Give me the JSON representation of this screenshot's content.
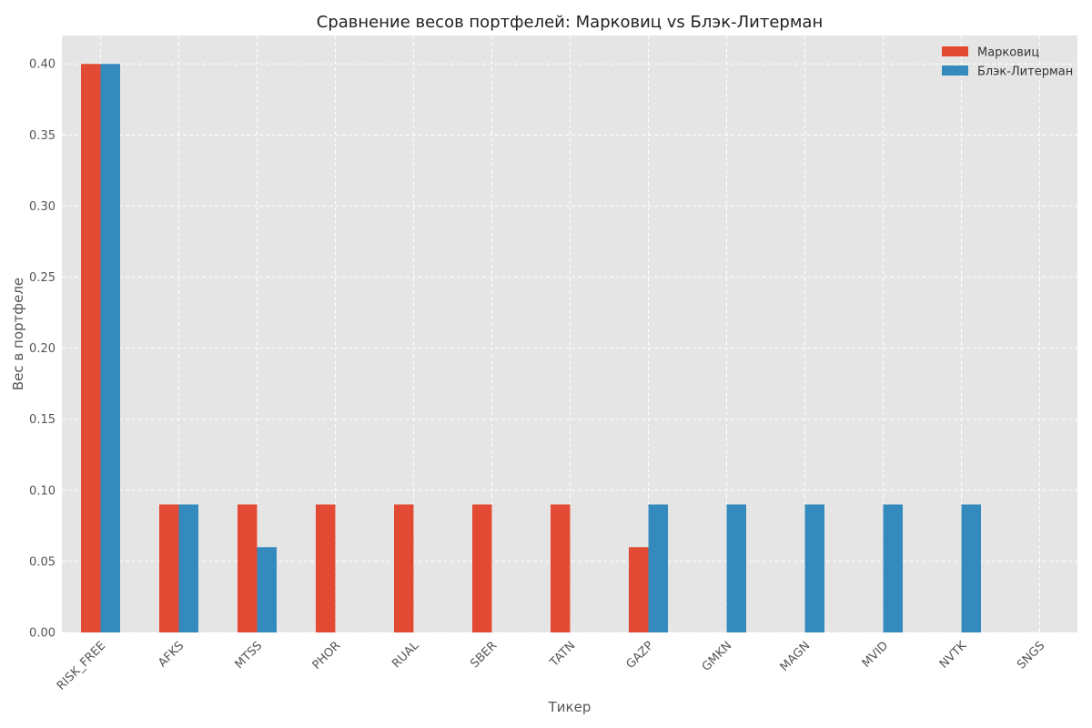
{
  "chart_data": {
    "type": "bar",
    "title": "Сравнение весов портфелей: Марковиц vs Блэк-Литерман",
    "xlabel": "Тикер",
    "ylabel": "Вес в портфеле",
    "ylim": [
      0,
      0.42
    ],
    "yticks": [
      "0.00",
      "0.05",
      "0.10",
      "0.15",
      "0.20",
      "0.25",
      "0.30",
      "0.35",
      "0.40"
    ],
    "grid": true,
    "legend_position": "top-right",
    "categories": [
      "RISK_FREE",
      "AFKS",
      "MTSS",
      "PHOR",
      "RUAL",
      "SBER",
      "TATN",
      "GAZP",
      "GMKN",
      "MAGN",
      "MVID",
      "NVTK",
      "SNGS"
    ],
    "series": [
      {
        "name": "Марковиц",
        "color": "#E24A33",
        "values": [
          0.4,
          0.09,
          0.09,
          0.09,
          0.09,
          0.09,
          0.09,
          0.06,
          0,
          0,
          0,
          0,
          0
        ]
      },
      {
        "name": "Блэк-Литерман",
        "color": "#348ABD",
        "values": [
          0.4,
          0.09,
          0.06,
          0,
          0,
          0,
          0,
          0.09,
          0.09,
          0.09,
          0.09,
          0.09,
          0
        ]
      }
    ],
    "colors": {
      "plot_background": "#E5E5E5",
      "grid": "#FFFFFF",
      "text": "#555555"
    }
  }
}
